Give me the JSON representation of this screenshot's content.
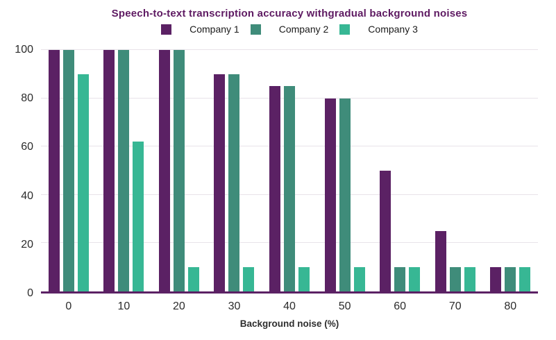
{
  "chart_data": {
    "type": "bar",
    "title": "Speech-to-text transcription accuracy withgradual background noises",
    "xlabel": "Background noise (%)",
    "ylabel": "",
    "categories": [
      "0",
      "10",
      "20",
      "30",
      "40",
      "50",
      "60",
      "70",
      "80"
    ],
    "series": [
      {
        "name": "Company 1",
        "color": "#5b2164",
        "values": [
          100,
          100,
          100,
          90,
          85,
          80,
          50,
          25,
          10
        ]
      },
      {
        "name": "Company 2",
        "color": "#3f8c7a",
        "values": [
          100,
          100,
          100,
          90,
          85,
          80,
          10,
          10,
          10
        ]
      },
      {
        "name": "Company 3",
        "color": "#37b794",
        "values": [
          90,
          62,
          10,
          10,
          10,
          10,
          10,
          10,
          10
        ]
      }
    ],
    "yticks": [
      0,
      20,
      40,
      60,
      80,
      100
    ],
    "ylim": [
      0,
      100
    ],
    "grid": "horizontal",
    "legend_position": "top-center",
    "colors": {
      "title": "#5e1a62",
      "axis_line": "#5b2164",
      "tick_label": "#2b2b2b",
      "gridline": "#e8e3e9",
      "background": "#ffffff"
    }
  }
}
